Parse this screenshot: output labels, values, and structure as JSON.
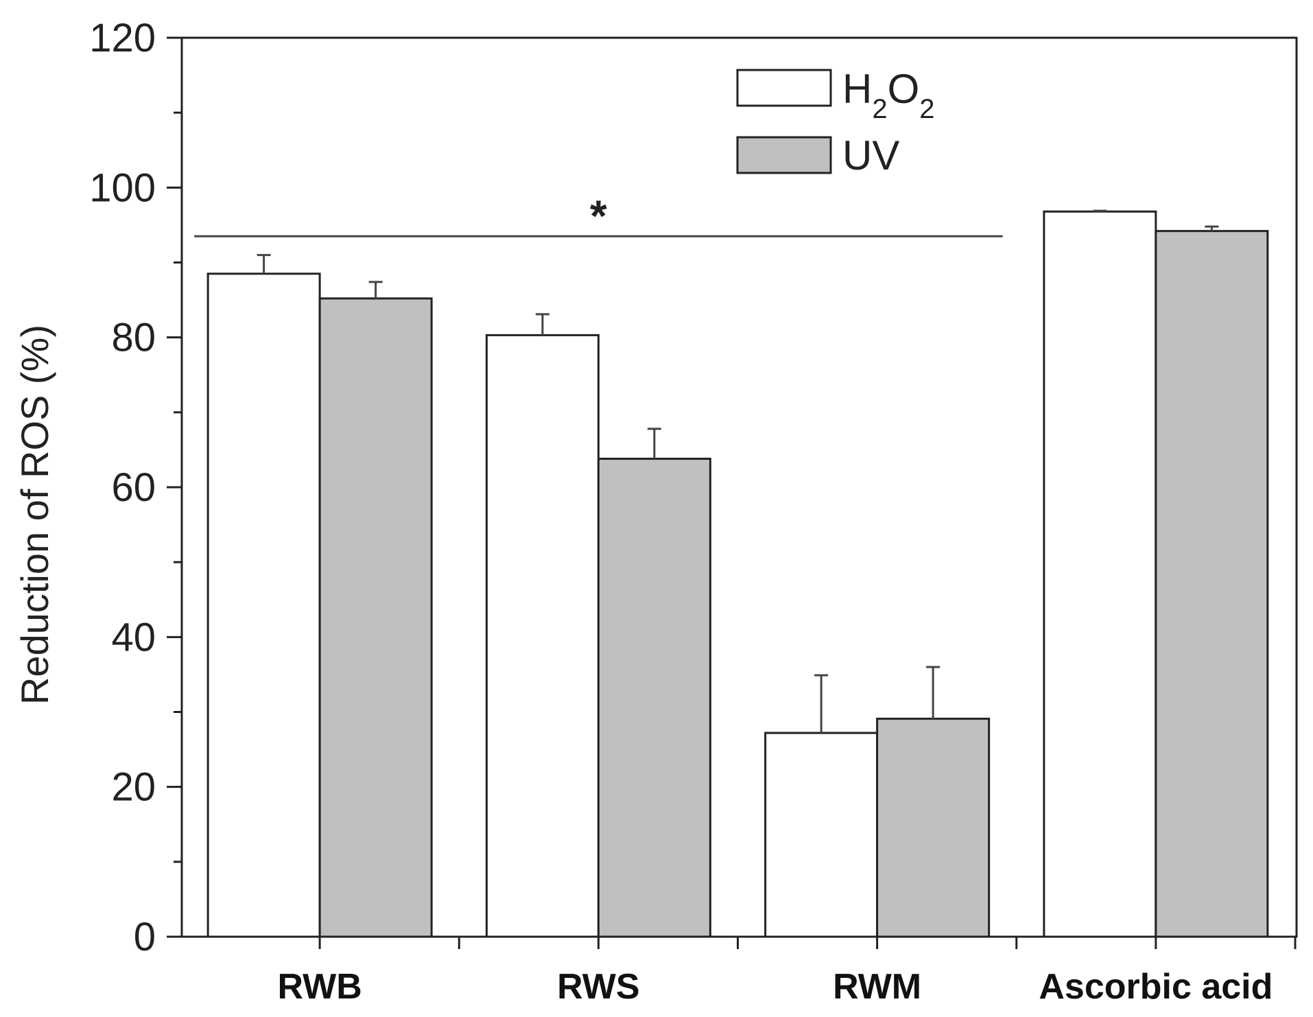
{
  "chart_data": {
    "type": "bar",
    "title": "",
    "xlabel": "",
    "ylabel": "Reduction of ROS (%)",
    "ylim": [
      0,
      120
    ],
    "yticks": [
      0,
      20,
      40,
      60,
      80,
      100,
      120
    ],
    "categories": [
      "RWB",
      "RWS",
      "RWM",
      "Ascorbic acid"
    ],
    "series": [
      {
        "name": "H2O2",
        "label_main": "H",
        "label_sub1": "2",
        "label_mid": "O",
        "label_sub2": "2",
        "color": "#ffffff",
        "values": [
          88.5,
          80.3,
          27.2,
          96.8
        ],
        "errors": [
          2.5,
          2.8,
          7.7,
          0.1
        ]
      },
      {
        "name": "UV",
        "label_main": "UV",
        "color": "#c0c0c0",
        "values": [
          85.2,
          63.8,
          29.1,
          94.2
        ],
        "errors": [
          2.2,
          4.0,
          6.9,
          0.6
        ]
      }
    ],
    "legend_position": "top-center",
    "annotation": {
      "text": "*",
      "y_value": 93.5,
      "spans_categories": [
        "RWB",
        "RWS",
        "RWM"
      ]
    }
  }
}
